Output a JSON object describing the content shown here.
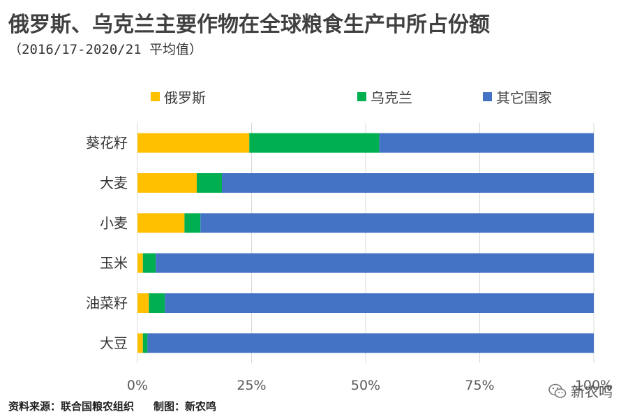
{
  "title": "俄罗斯、乌克兰主要作物在全球粮食生产中所占份额",
  "subtitle": "（2016/17-2020/21 平均值）",
  "footer": {
    "source": "资料来源：联合国粮农组织",
    "maker": "制图：新农鸣"
  },
  "watermark": {
    "text": "新农鸣",
    "icon": "wechat-icon"
  },
  "colors": {
    "russia": "#FFC000",
    "ukraine": "#00B050",
    "other": "#4472C4",
    "grid": "#D9D9D9",
    "axis_text": "#595959"
  },
  "chart_data": {
    "type": "bar",
    "orientation": "horizontal",
    "stacked": true,
    "percent": true,
    "categories": [
      "葵花籽",
      "大麦",
      "小麦",
      "玉米",
      "油菜籽",
      "大豆"
    ],
    "series": [
      {
        "name": "俄罗斯",
        "color": "#FFC000",
        "values": [
          24.5,
          13.0,
          10.3,
          1.2,
          2.5,
          1.2
        ]
      },
      {
        "name": "乌克兰",
        "color": "#00B050",
        "values": [
          28.5,
          5.5,
          3.5,
          2.8,
          3.5,
          1.0
        ]
      },
      {
        "name": "其它国家",
        "color": "#4472C4",
        "values": [
          47.0,
          81.5,
          86.2,
          96.0,
          94.0,
          97.8
        ]
      }
    ],
    "xlim": [
      0,
      100
    ],
    "xticks": [
      "0%",
      "25%",
      "50%",
      "75%",
      "100%"
    ],
    "xtick_values": [
      0,
      25,
      50,
      75,
      100
    ],
    "grid": true,
    "legend": "top"
  }
}
